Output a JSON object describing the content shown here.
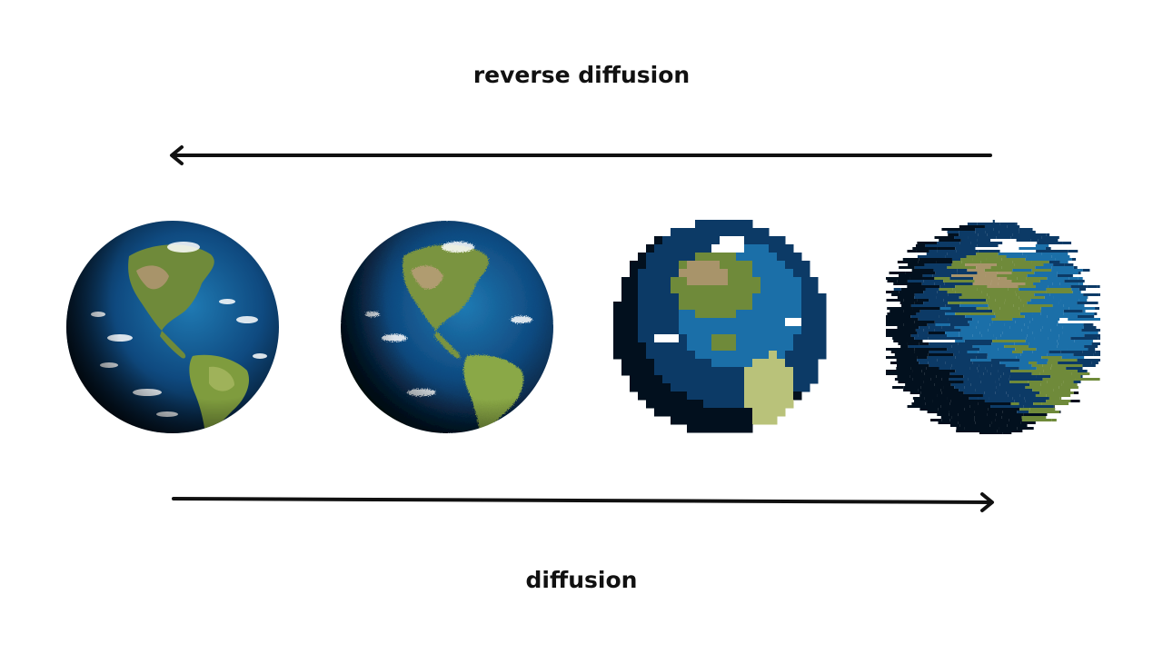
{
  "labels": {
    "reverse": "reverse diffusion",
    "forward": "diffusion"
  },
  "globes": [
    {
      "name": "globe-original",
      "noise_level": "none"
    },
    {
      "name": "globe-light-noise",
      "noise_level": "light"
    },
    {
      "name": "globe-pixelated",
      "noise_level": "medium"
    },
    {
      "name": "globe-heavy-noise",
      "noise_level": "heavy"
    }
  ],
  "colors": {
    "ocean": "#0c3a66",
    "ocean_light": "#1b6fa8",
    "land": "#6f8a3a",
    "land_light": "#b9c27a",
    "desert": "#a8946a",
    "cloud": "#ffffff",
    "shadow": "#02101e",
    "arrow": "#111111",
    "text": "#111111"
  }
}
